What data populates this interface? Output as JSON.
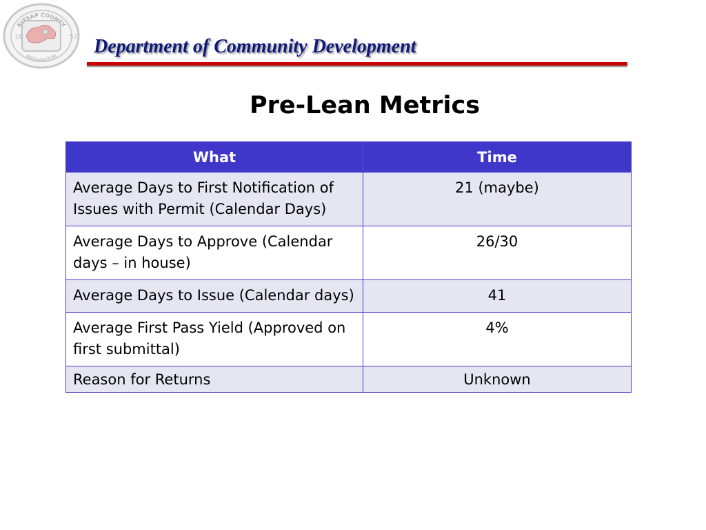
{
  "header": {
    "title": "Department of Community Development",
    "seal": {
      "top_text": "KITSAP COUNTY",
      "bottom_text": "WASHINGTON",
      "year_left": "18",
      "year_right": "57"
    }
  },
  "slide": {
    "title": "Pre-Lean Metrics"
  },
  "table": {
    "headers": [
      "What",
      "Time"
    ],
    "rows": [
      {
        "what": "Average Days to First Notification of Issues with Permit (Calendar Days)",
        "time": "21 (maybe)"
      },
      {
        "what": "Average Days to Approve (Calendar days – in house)",
        "time": "26/30"
      },
      {
        "what": "Average Days to Issue (Calendar days)",
        "time": "41"
      },
      {
        "what": "Average First Pass Yield (Approved on first submittal)",
        "time": "4%"
      },
      {
        "what": "Reason for Returns",
        "time": "Unknown"
      }
    ]
  },
  "colors": {
    "header_blue": "#3f37c9",
    "title_navy": "#0e1a7a",
    "rule_red": "#cc0000",
    "row_shade": "#e6e6f3"
  }
}
